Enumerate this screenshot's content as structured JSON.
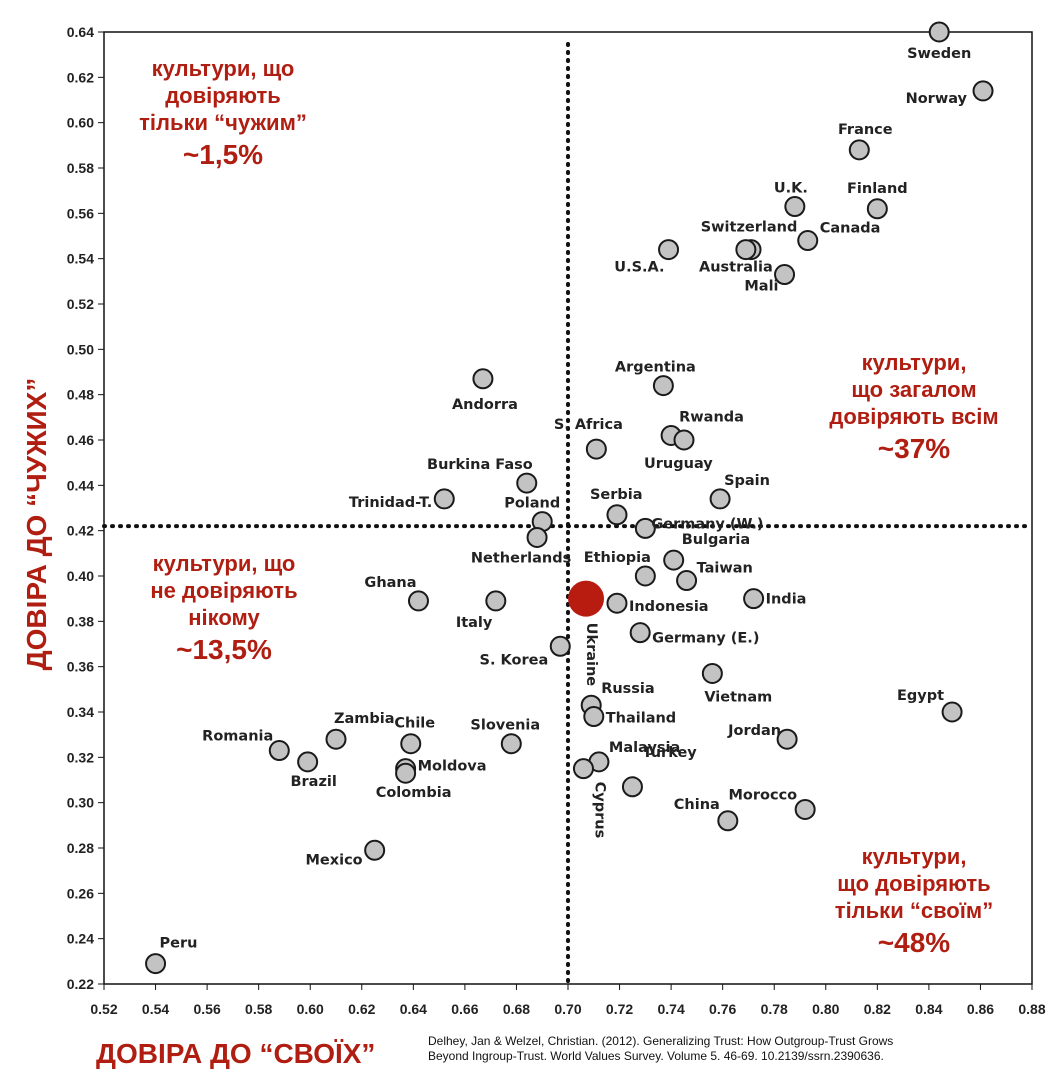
{
  "chart_data": {
    "type": "scatter",
    "xlabel": "ДОВІРА ДО “СВОЇХ”",
    "ylabel": "ДОВІРА ДО “ЧУЖИХ”",
    "xlim": [
      0.52,
      0.88
    ],
    "ylim": [
      0.22,
      0.64
    ],
    "x_ticks": [
      "0.52",
      "0.54",
      "0.56",
      "0.58",
      "0.60",
      "0.62",
      "0.64",
      "0.66",
      "0.68",
      "0.70",
      "0.72",
      "0.74",
      "0.76",
      "0.78",
      "0.80",
      "0.82",
      "0.84",
      "0.86",
      "0.88"
    ],
    "y_ticks": [
      "0.22",
      "0.24",
      "0.26",
      "0.28",
      "0.30",
      "0.32",
      "0.34",
      "0.36",
      "0.38",
      "0.40",
      "0.42",
      "0.44",
      "0.46",
      "0.48",
      "0.50",
      "0.52",
      "0.54",
      "0.56",
      "0.58",
      "0.60",
      "0.62",
      "0.64"
    ],
    "divider_x": 0.7,
    "divider_y": 0.422,
    "points": [
      {
        "label": "Sweden",
        "x": 0.844,
        "y": 0.64
      },
      {
        "label": "Norway",
        "x": 0.861,
        "y": 0.614
      },
      {
        "label": "France",
        "x": 0.813,
        "y": 0.588
      },
      {
        "label": "U.K.",
        "x": 0.788,
        "y": 0.563
      },
      {
        "label": "Finland",
        "x": 0.82,
        "y": 0.562
      },
      {
        "label": "Switzerland",
        "x": 0.771,
        "y": 0.544
      },
      {
        "label": "Canada",
        "x": 0.793,
        "y": 0.548
      },
      {
        "label": "U.S.A.",
        "x": 0.739,
        "y": 0.544
      },
      {
        "label": "Australia",
        "x": 0.769,
        "y": 0.544
      },
      {
        "label": "Mali",
        "x": 0.784,
        "y": 0.533
      },
      {
        "label": "Argentina",
        "x": 0.737,
        "y": 0.484
      },
      {
        "label": "Andorra",
        "x": 0.667,
        "y": 0.487
      },
      {
        "label": "Rwanda",
        "x": 0.74,
        "y": 0.462
      },
      {
        "label": "S. Africa",
        "x": 0.711,
        "y": 0.456
      },
      {
        "label": "Uruguay",
        "x": 0.745,
        "y": 0.46
      },
      {
        "label": "Burkina Faso",
        "x": 0.684,
        "y": 0.441
      },
      {
        "label": "Spain",
        "x": 0.759,
        "y": 0.434
      },
      {
        "label": "Trinidad-T.",
        "x": 0.652,
        "y": 0.434
      },
      {
        "label": "Serbia",
        "x": 0.719,
        "y": 0.427
      },
      {
        "label": "Poland",
        "x": 0.69,
        "y": 0.424
      },
      {
        "label": "Germany (W.)",
        "x": 0.73,
        "y": 0.421
      },
      {
        "label": "Netherlands",
        "x": 0.688,
        "y": 0.417
      },
      {
        "label": "Bulgaria",
        "x": 0.741,
        "y": 0.407
      },
      {
        "label": "Ethiopia",
        "x": 0.73,
        "y": 0.4
      },
      {
        "label": "Taiwan",
        "x": 0.746,
        "y": 0.398
      },
      {
        "label": "Ghana",
        "x": 0.642,
        "y": 0.389
      },
      {
        "label": "Italy",
        "x": 0.672,
        "y": 0.389
      },
      {
        "label": "Indonesia",
        "x": 0.719,
        "y": 0.388
      },
      {
        "label": "India",
        "x": 0.772,
        "y": 0.39
      },
      {
        "label": "Ukraine",
        "x": 0.707,
        "y": 0.39,
        "highlight": true
      },
      {
        "label": "Germany (E.)",
        "x": 0.728,
        "y": 0.375
      },
      {
        "label": "S. Korea",
        "x": 0.697,
        "y": 0.369
      },
      {
        "label": "Vietnam",
        "x": 0.756,
        "y": 0.357
      },
      {
        "label": "Egypt",
        "x": 0.849,
        "y": 0.34
      },
      {
        "label": "Russia",
        "x": 0.709,
        "y": 0.343
      },
      {
        "label": "Thailand",
        "x": 0.71,
        "y": 0.338
      },
      {
        "label": "Jordan",
        "x": 0.785,
        "y": 0.328
      },
      {
        "label": "Zambia",
        "x": 0.61,
        "y": 0.328
      },
      {
        "label": "Chile",
        "x": 0.639,
        "y": 0.326
      },
      {
        "label": "Slovenia",
        "x": 0.678,
        "y": 0.326
      },
      {
        "label": "Romania",
        "x": 0.588,
        "y": 0.323
      },
      {
        "label": "Brazil",
        "x": 0.599,
        "y": 0.318
      },
      {
        "label": "Malaysia",
        "x": 0.712,
        "y": 0.318
      },
      {
        "label": "Moldova",
        "x": 0.637,
        "y": 0.315
      },
      {
        "label": "Colombia",
        "x": 0.637,
        "y": 0.313
      },
      {
        "label": "Cyprus",
        "x": 0.706,
        "y": 0.315
      },
      {
        "label": "Turkey",
        "x": 0.725,
        "y": 0.307
      },
      {
        "label": "Morocco",
        "x": 0.792,
        "y": 0.297
      },
      {
        "label": "China",
        "x": 0.762,
        "y": 0.292
      },
      {
        "label": "Mexico",
        "x": 0.625,
        "y": 0.279
      },
      {
        "label": "Peru",
        "x": 0.54,
        "y": 0.229
      }
    ],
    "annotations": [
      {
        "lines": [
          "культури, що",
          "довіряють",
          "тільки “чужим”"
        ],
        "value": "~1,5%"
      },
      {
        "lines": [
          "культури,",
          "що загалом",
          "довіряють всім"
        ],
        "value": "~37%"
      },
      {
        "lines": [
          "культури, що",
          "не довіряють",
          "нікому"
        ],
        "value": "~13,5%"
      },
      {
        "lines": [
          "культури,",
          "що довіряють",
          "тільки “своїм”"
        ],
        "value": "~48%"
      }
    ]
  },
  "source": {
    "line1": "Delhey, Jan & Welzel, Christian. (2012). Generalizing Trust: How Outgroup-Trust Grows",
    "line2": "Beyond Ingroup-Trust. World Values Survey. Volume 5. 46-69. 10.2139/ssrn.2390636."
  },
  "colors": {
    "point_fill": "#c3c3c3",
    "point_stroke": "#1a1a1a",
    "highlight": "#b81c10",
    "annotation": "#b01e12"
  }
}
